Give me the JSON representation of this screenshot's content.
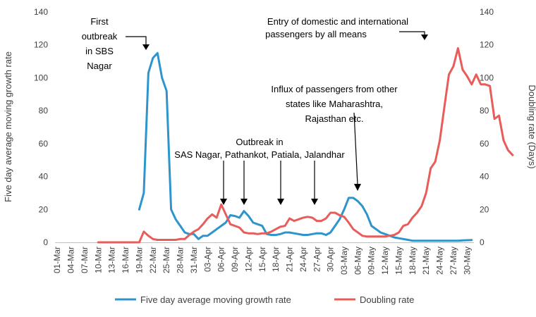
{
  "chart_data": {
    "type": "line",
    "title": "",
    "xlabel": "",
    "ylabel_left": "Five day average moving growth rate",
    "ylabel_right": "Doubling rate (Days)",
    "ylim_left": [
      0,
      140
    ],
    "ylim_right": [
      0,
      140
    ],
    "yticks": [
      0,
      20,
      40,
      60,
      80,
      100,
      120,
      140
    ],
    "x_tick_labels": [
      "01-Mar",
      "04-Mar",
      "07-Mar",
      "10-Mar",
      "13-Mar",
      "16-Mar",
      "19-Mar",
      "22-Mar",
      "25-Mar",
      "28-Mar",
      "31-Mar",
      "03-Apr",
      "06-Apr",
      "09-Apr",
      "12-Apr",
      "15-Apr",
      "18-Apr",
      "21-Apr",
      "24-Apr",
      "27-Apr",
      "30-Apr",
      "03-May",
      "06-May",
      "09-May",
      "12-May",
      "15-May",
      "18-May",
      "21-May",
      "24-May",
      "27-May",
      "30-May"
    ],
    "x_tick_step_days": 3,
    "num_days": 92,
    "series": [
      {
        "name": "Five day average moving growth rate",
        "color": "#2e95cc",
        "start_day": 18,
        "values": [
          20,
          30,
          103,
          112,
          115,
          100,
          92,
          20,
          14,
          10,
          6,
          5,
          5,
          2,
          4,
          4,
          6,
          8,
          10,
          12,
          16.5,
          16,
          15,
          19,
          16,
          12,
          11,
          10,
          5,
          4.5,
          4.5,
          5,
          6,
          6,
          5.5,
          5,
          4.5,
          4.5,
          5,
          5.5,
          5.5,
          4.5,
          6,
          10,
          14,
          20,
          27,
          27,
          25,
          22,
          17,
          10,
          8,
          6,
          5,
          4,
          3,
          2.5,
          2,
          1.5,
          1,
          1,
          1,
          1,
          1,
          1,
          1,
          1,
          1,
          1,
          1,
          1.2,
          1.3,
          1.4
        ]
      },
      {
        "name": "Doubling rate",
        "color": "#e85c5a",
        "start_day": 9,
        "values": [
          0,
          0,
          0,
          0,
          0,
          0,
          0,
          0,
          0,
          0,
          6.5,
          4,
          2,
          1.5,
          1.5,
          1.5,
          1.5,
          1.5,
          2,
          2,
          4.5,
          6.5,
          8,
          11,
          14.5,
          17,
          15,
          23,
          17,
          11,
          10,
          9,
          6,
          5.5,
          5.5,
          5,
          5.5,
          5.5,
          6.5,
          8,
          9.5,
          10,
          14.5,
          13,
          14,
          15,
          15.5,
          15,
          13,
          13,
          14.5,
          18,
          18,
          16.5,
          15.5,
          12,
          8,
          6,
          4,
          3.5,
          3.5,
          3.5,
          3.5,
          3.5,
          4,
          4.5,
          6,
          10,
          11,
          15,
          18,
          22,
          30,
          45,
          49,
          62,
          82,
          102,
          107,
          118,
          105,
          101,
          96,
          102,
          96,
          96,
          95,
          75,
          77,
          62,
          56,
          53
        ]
      }
    ],
    "legend": {
      "position": "bottom",
      "labels": [
        "Five day average moving growth rate",
        "Doubling rate"
      ]
    },
    "annotations": [
      {
        "lines": [
          "First",
          "outbreak",
          "in SBS",
          "Nagar"
        ]
      },
      {
        "lines": [
          "Outbreak in",
          "SAS Nagar, Pathankot, Patiala, Jalandhar"
        ]
      },
      {
        "lines": [
          "Influx of passengers from other",
          "states like Maharashtra,",
          "Rajasthan etc."
        ]
      },
      {
        "lines": [
          "Entry of domestic and international",
          "passengers by all means"
        ]
      }
    ]
  }
}
